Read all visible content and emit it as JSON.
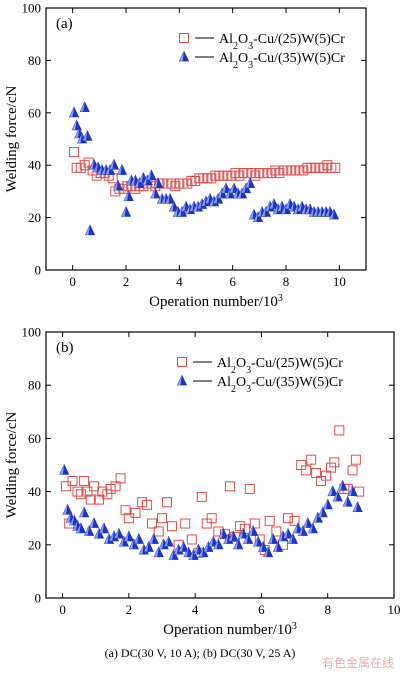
{
  "caption": "(a) DC(30 V, 10 A); (b) DC(30 V,  25 A)",
  "watermark": "有色金属在线",
  "colors": {
    "red": "#e34a4a",
    "blue": "#1a35c8"
  },
  "chart_data": [
    {
      "type": "scatter",
      "panel_label": "(a)",
      "xlabel": "Operation number/10",
      "xlabel_sup": "3",
      "ylabel": "Welding force/cN",
      "xlim": [
        -1,
        11
      ],
      "ylim": [
        0,
        100
      ],
      "xticks": [
        0,
        2,
        4,
        6,
        8,
        10
      ],
      "yticks": [
        0,
        20,
        40,
        60,
        80,
        100
      ],
      "legend_position": "top-right",
      "series": [
        {
          "name": "Al2O3-Cu/(25)W(5)Cr",
          "marker": "square",
          "color": "#e34a4a",
          "x": [
            0.05,
            0.15,
            0.3,
            0.45,
            0.6,
            0.75,
            0.9,
            1.05,
            1.2,
            1.35,
            1.5,
            1.6,
            1.75,
            1.9,
            2.05,
            2.2,
            2.35,
            2.5,
            2.65,
            2.8,
            2.95,
            3.1,
            3.25,
            3.4,
            3.55,
            3.7,
            3.85,
            4.0,
            4.15,
            4.3,
            4.45,
            4.6,
            4.75,
            4.9,
            5.05,
            5.2,
            5.35,
            5.5,
            5.65,
            5.8,
            5.95,
            6.1,
            6.25,
            6.4,
            6.55,
            6.7,
            6.85,
            7.0,
            7.15,
            7.3,
            7.45,
            7.6,
            7.75,
            7.9,
            8.05,
            8.2,
            8.35,
            8.5,
            8.65,
            8.8,
            8.95,
            9.1,
            9.25,
            9.4,
            9.55,
            9.7,
            9.85
          ],
          "y": [
            45,
            39,
            39,
            40,
            41,
            38,
            36,
            37,
            37,
            36,
            35,
            30,
            31,
            31,
            32,
            32,
            31,
            32,
            32,
            33,
            33,
            32,
            33,
            33,
            33,
            33,
            32,
            33,
            33,
            33,
            34,
            34,
            35,
            35,
            35,
            35,
            36,
            36,
            36,
            36,
            36,
            37,
            36,
            37,
            37,
            37,
            36,
            37,
            37,
            37,
            37,
            38,
            37,
            38,
            38,
            38,
            38,
            38,
            38,
            39,
            39,
            39,
            39,
            39,
            40,
            39,
            39
          ]
        },
        {
          "name": "Al2O3-Cu/(35)W(5)Cr",
          "marker": "triangle",
          "color": "#1a35c8",
          "x": [
            0.05,
            0.15,
            0.25,
            0.35,
            0.45,
            0.55,
            0.65,
            0.8,
            0.95,
            1.1,
            1.25,
            1.4,
            1.55,
            1.7,
            1.85,
            2.0,
            2.1,
            2.2,
            2.35,
            2.5,
            2.65,
            2.8,
            2.95,
            3.1,
            3.2,
            3.35,
            3.5,
            3.65,
            3.8,
            3.95,
            4.1,
            4.25,
            4.4,
            4.55,
            4.7,
            4.85,
            5.0,
            5.15,
            5.3,
            5.45,
            5.6,
            5.75,
            5.9,
            6.05,
            6.2,
            6.35,
            6.5,
            6.65,
            6.8,
            6.95,
            7.1,
            7.25,
            7.4,
            7.55,
            7.7,
            7.85,
            8.0,
            8.15,
            8.3,
            8.45,
            8.6,
            8.75,
            8.9,
            9.05,
            9.2,
            9.35,
            9.5,
            9.65,
            9.8
          ],
          "y": [
            60,
            55,
            52,
            50,
            62,
            51,
            15,
            40,
            39,
            38,
            38,
            38,
            40,
            32,
            38,
            22,
            28,
            34,
            34,
            33,
            35,
            34,
            36,
            29,
            33,
            27,
            27,
            27,
            24,
            22,
            22,
            24,
            23,
            24,
            24,
            25,
            26,
            27,
            26,
            27,
            29,
            31,
            29,
            31,
            29,
            29,
            31,
            33,
            21,
            20,
            22,
            22,
            24,
            25,
            23,
            24,
            23,
            25,
            24,
            23,
            24,
            23,
            23,
            22,
            22,
            22,
            22,
            22,
            21
          ]
        }
      ]
    },
    {
      "type": "scatter",
      "panel_label": "(b)",
      "xlabel": "Operation number/10",
      "xlabel_sup": "3",
      "ylabel": "Welding force/cN",
      "xlim": [
        -0.5,
        10
      ],
      "ylim": [
        0,
        100
      ],
      "xticks": [
        0,
        2,
        4,
        6,
        8,
        10
      ],
      "yticks": [
        0,
        20,
        40,
        60,
        80,
        100
      ],
      "legend_position": "top-right",
      "series": [
        {
          "name": "Al2O3-Cu/(25)W(5)Cr",
          "marker": "square",
          "color": "#e34a4a",
          "x": [
            0.1,
            0.2,
            0.3,
            0.45,
            0.55,
            0.65,
            0.75,
            0.85,
            0.95,
            1.1,
            1.2,
            1.35,
            1.45,
            1.6,
            1.75,
            1.9,
            2.0,
            2.2,
            2.4,
            2.55,
            2.7,
            2.9,
            3.0,
            3.15,
            3.3,
            3.5,
            3.7,
            3.9,
            4.1,
            4.2,
            4.35,
            4.5,
            4.7,
            4.9,
            5.05,
            5.2,
            5.35,
            5.5,
            5.65,
            5.8,
            5.95,
            6.1,
            6.25,
            6.45,
            6.65,
            6.8,
            7.0,
            7.2,
            7.35,
            7.5,
            7.65,
            7.8,
            7.95,
            8.1,
            8.2,
            8.35,
            8.5,
            8.6,
            8.75,
            8.85,
            8.95
          ],
          "y": [
            42,
            28,
            44,
            40,
            39,
            44,
            40,
            37,
            42,
            37,
            40,
            39,
            41,
            42,
            45,
            33,
            30,
            32,
            36,
            35,
            28,
            25,
            30,
            36,
            27,
            20,
            28,
            22,
            17,
            38,
            28,
            30,
            25,
            24,
            42,
            23,
            27,
            26,
            41,
            28,
            22,
            18,
            29,
            25,
            20,
            30,
            29,
            50,
            48,
            52,
            47,
            44,
            46,
            49,
            51,
            63,
            41,
            41,
            48,
            52,
            40
          ]
        },
        {
          "name": "Al2O3-Cu/(35)W(5)Cr",
          "marker": "triangle",
          "color": "#1a35c8",
          "x": [
            0.05,
            0.15,
            0.25,
            0.35,
            0.45,
            0.55,
            0.65,
            0.8,
            0.95,
            1.1,
            1.25,
            1.4,
            1.55,
            1.7,
            1.85,
            2.0,
            2.15,
            2.3,
            2.45,
            2.6,
            2.75,
            2.9,
            3.05,
            3.2,
            3.35,
            3.5,
            3.65,
            3.8,
            3.95,
            4.1,
            4.25,
            4.4,
            4.55,
            4.7,
            4.85,
            5.0,
            5.15,
            5.3,
            5.45,
            5.6,
            5.75,
            5.9,
            6.05,
            6.2,
            6.35,
            6.5,
            6.65,
            6.8,
            6.95,
            7.1,
            7.25,
            7.4,
            7.55,
            7.7,
            7.85,
            8.0,
            8.15,
            8.3,
            8.45,
            8.6,
            8.75,
            8.9
          ],
          "y": [
            48,
            33,
            30,
            29,
            27,
            26,
            32,
            25,
            28,
            24,
            26,
            22,
            23,
            24,
            21,
            23,
            20,
            22,
            18,
            19,
            22,
            17,
            20,
            21,
            16,
            18,
            19,
            17,
            16,
            18,
            17,
            19,
            21,
            20,
            24,
            22,
            23,
            20,
            24,
            22,
            25,
            21,
            19,
            17,
            22,
            19,
            23,
            24,
            22,
            26,
            25,
            28,
            26,
            30,
            32,
            35,
            40,
            38,
            42,
            36,
            40,
            34
          ]
        }
      ]
    }
  ]
}
